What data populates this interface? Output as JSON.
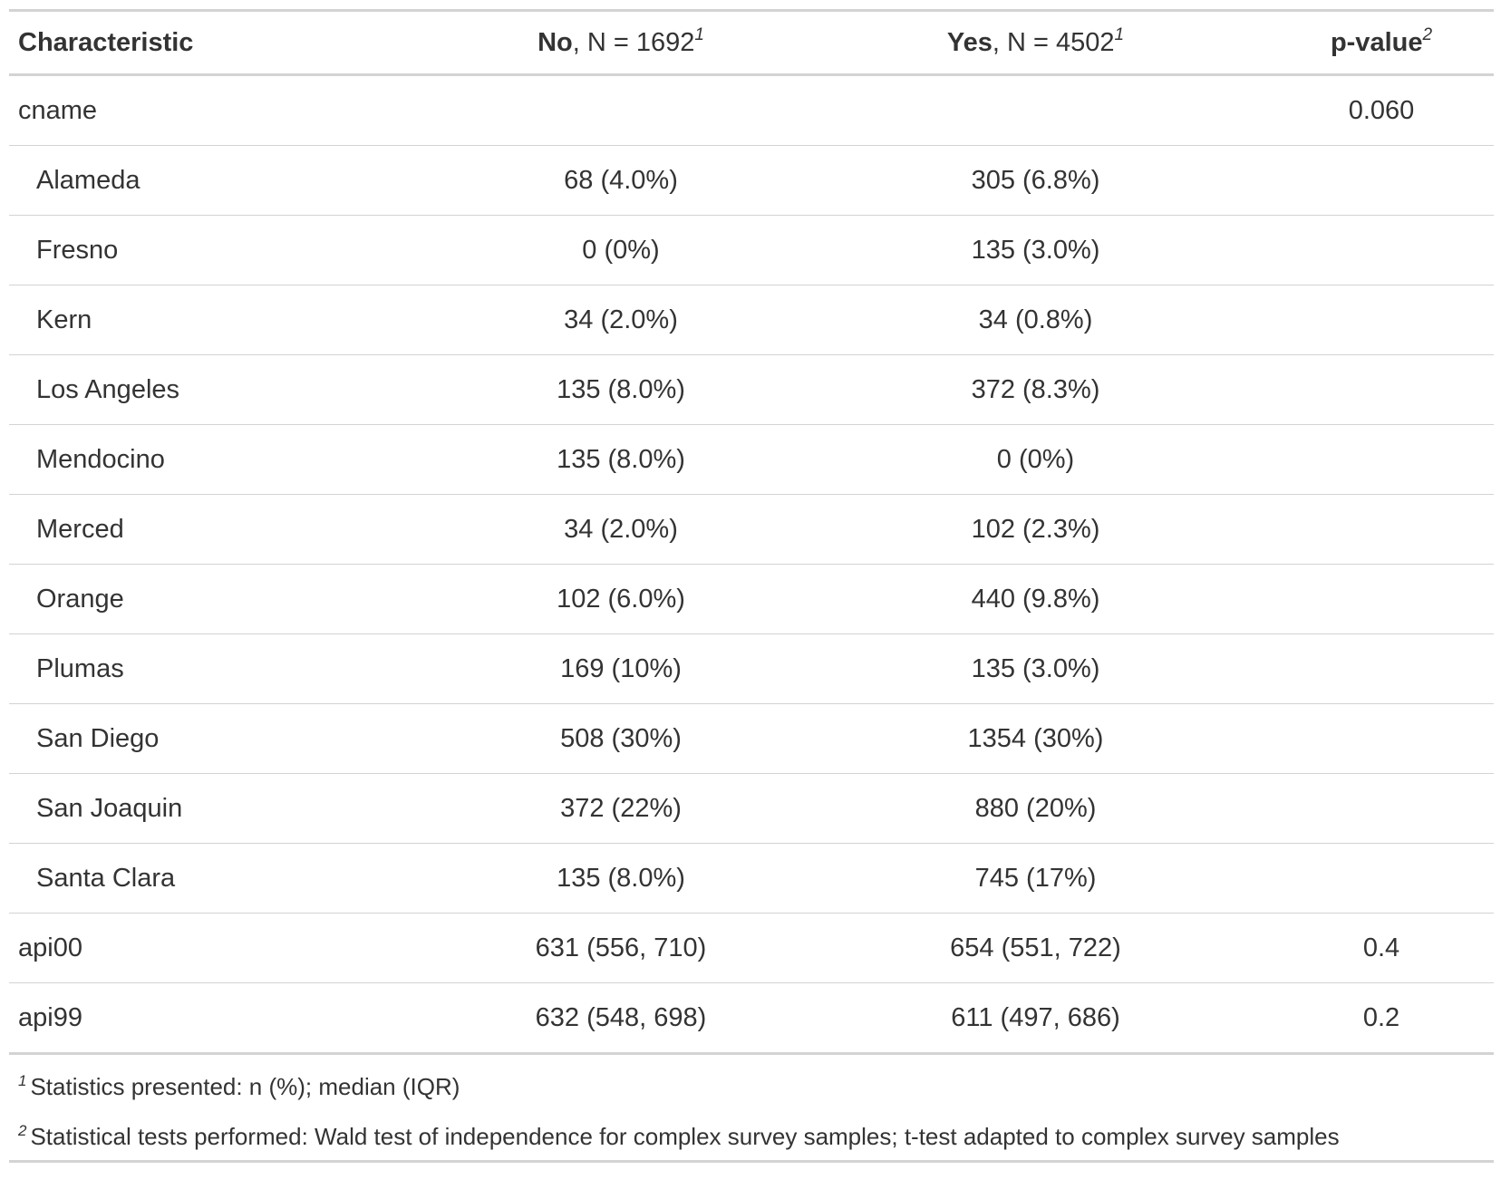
{
  "header": {
    "characteristic": "Characteristic",
    "no_label": "No",
    "no_n": ", N = 1692",
    "yes_label": "Yes",
    "yes_n": ", N = 4502",
    "pvalue": "p-value",
    "footnote_mark_1": "1",
    "footnote_mark_2": "2"
  },
  "rows": [
    {
      "label": "cname",
      "no": "",
      "yes": "",
      "p": "0.060"
    },
    {
      "label": "Alameda",
      "no": "68 (4.0%)",
      "yes": "305 (6.8%)",
      "p": ""
    },
    {
      "label": "Fresno",
      "no": "0 (0%)",
      "yes": "135 (3.0%)",
      "p": ""
    },
    {
      "label": "Kern",
      "no": "34 (2.0%)",
      "yes": "34 (0.8%)",
      "p": ""
    },
    {
      "label": "Los Angeles",
      "no": "135 (8.0%)",
      "yes": "372 (8.3%)",
      "p": ""
    },
    {
      "label": "Mendocino",
      "no": "135 (8.0%)",
      "yes": "0 (0%)",
      "p": ""
    },
    {
      "label": "Merced",
      "no": "34 (2.0%)",
      "yes": "102 (2.3%)",
      "p": ""
    },
    {
      "label": "Orange",
      "no": "102 (6.0%)",
      "yes": "440 (9.8%)",
      "p": ""
    },
    {
      "label": "Plumas",
      "no": "169 (10%)",
      "yes": "135 (3.0%)",
      "p": ""
    },
    {
      "label": "San Diego",
      "no": "508 (30%)",
      "yes": "1354 (30%)",
      "p": ""
    },
    {
      "label": "San Joaquin",
      "no": "372 (22%)",
      "yes": "880 (20%)",
      "p": ""
    },
    {
      "label": "Santa Clara",
      "no": "135 (8.0%)",
      "yes": "745 (17%)",
      "p": ""
    },
    {
      "label": "api00",
      "no": "631 (556, 710)",
      "yes": "654 (551, 722)",
      "p": "0.4"
    },
    {
      "label": "api99",
      "no": "632 (548, 698)",
      "yes": "611 (497, 686)",
      "p": "0.2"
    }
  ],
  "footnotes": [
    {
      "mark": "1",
      "text": "Statistics presented: n (%); median (IQR)"
    },
    {
      "mark": "2",
      "text": "Statistical tests performed: Wald test of independence for complex survey samples; t-test adapted to complex survey samples"
    }
  ]
}
